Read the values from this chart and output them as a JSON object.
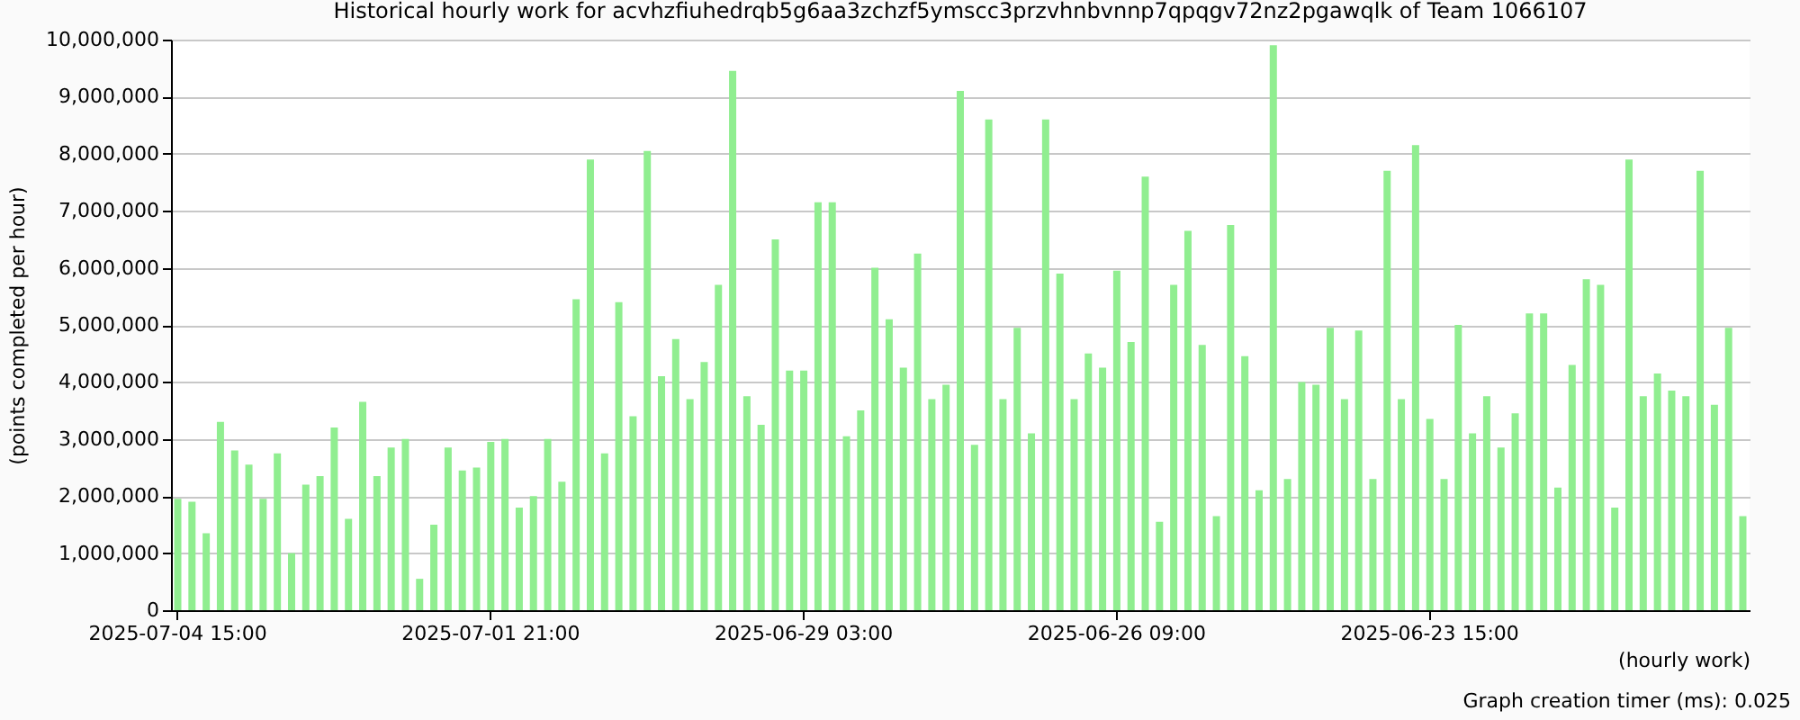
{
  "chart_data": {
    "type": "bar",
    "title": "Historical hourly work for acvhzfiuhedrqb5g6aa3zchzf5ymscc3przvhnbvnnp7qpqgv72nz2pgawqlk of Team 1066107",
    "xlabel": "(hourly work)",
    "ylabel": "(points completed per hour)",
    "annotations": [
      "Graph creation timer (ms): 0.025"
    ],
    "categories": [
      "2025-07-04 15:00",
      null,
      null,
      null,
      null,
      null,
      null,
      null,
      null,
      null,
      null,
      null,
      null,
      null,
      null,
      null,
      null,
      null,
      null,
      null,
      null,
      null,
      "2025-07-01 21:00",
      null,
      null,
      null,
      null,
      null,
      null,
      null,
      null,
      null,
      null,
      null,
      null,
      null,
      null,
      null,
      null,
      null,
      null,
      null,
      null,
      null,
      "2025-06-29 03:00",
      null,
      null,
      null,
      null,
      null,
      null,
      null,
      null,
      null,
      null,
      null,
      null,
      null,
      null,
      null,
      null,
      null,
      null,
      null,
      null,
      null,
      "2025-06-26 09:00",
      null,
      null,
      null,
      null,
      null,
      null,
      null,
      null,
      null,
      null,
      null,
      null,
      null,
      null,
      null,
      null,
      null,
      null,
      null,
      null,
      null,
      "2025-06-23 15:00",
      null,
      null,
      null,
      null,
      null,
      null,
      null,
      null,
      null,
      null,
      null,
      null,
      null,
      null,
      null,
      null,
      null,
      null,
      null,
      null,
      null,
      null
    ],
    "values": [
      1950000,
      1900000,
      1350000,
      3300000,
      2800000,
      2550000,
      1950000,
      2750000,
      1000000,
      2200000,
      2350000,
      3200000,
      1600000,
      3650000,
      2350000,
      2850000,
      3000000,
      550000,
      1500000,
      2850000,
      2450000,
      2500000,
      2950000,
      3000000,
      1800000,
      2000000,
      3000000,
      2250000,
      5450000,
      7900000,
      2750000,
      5400000,
      3400000,
      8050000,
      4100000,
      4750000,
      3700000,
      4350000,
      5700000,
      9450000,
      3750000,
      3250000,
      6500000,
      4200000,
      4200000,
      7150000,
      7150000,
      3050000,
      3500000,
      6000000,
      5100000,
      4250000,
      6250000,
      3700000,
      3950000,
      9100000,
      2900000,
      8600000,
      3700000,
      4950000,
      3100000,
      8600000,
      5900000,
      3700000,
      4500000,
      4250000,
      5950000,
      4700000,
      7600000,
      1550000,
      5700000,
      6650000,
      4650000,
      1650000,
      6750000,
      4450000,
      2100000,
      9900000,
      2300000,
      4000000,
      3950000,
      4950000,
      3700000,
      4900000,
      2300000,
      7700000,
      3700000,
      8150000,
      3350000,
      2300000,
      5000000,
      3100000,
      3750000,
      2850000,
      3450000,
      5200000,
      5200000,
      2150000,
      4300000,
      5800000,
      5700000,
      1800000,
      7900000,
      3750000,
      4150000,
      3850000,
      3750000,
      7700000,
      3600000,
      4950000,
      1650000
    ],
    "color": "#90ee90",
    "ylim": [
      0,
      10000000
    ],
    "yticks": [
      0,
      {
        "value": 1000000,
        "label": "1,000,000"
      },
      {
        "value": 2000000,
        "label": "2,000,000"
      },
      {
        "value": 3000000,
        "label": "3,000,000"
      },
      {
        "value": 4000000,
        "label": "4,000,000"
      },
      {
        "value": 5000000,
        "label": "5,000,000"
      },
      {
        "value": 6000000,
        "label": "6,000,000"
      },
      {
        "value": 7000000,
        "label": "7,000,000"
      },
      {
        "value": 8000000,
        "label": "8,000,000"
      },
      {
        "value": 9000000,
        "label": "9,000,000"
      },
      {
        "value": 10000000,
        "label": "10,000,000"
      }
    ],
    "grid": "y"
  }
}
